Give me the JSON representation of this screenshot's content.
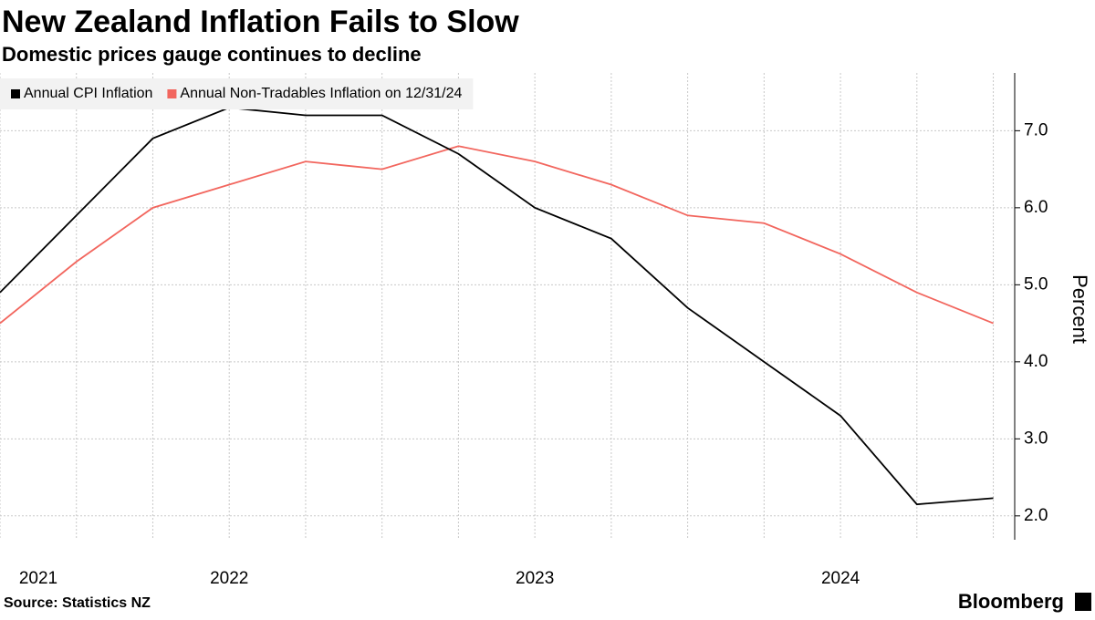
{
  "chart_data": {
    "type": "line",
    "title": "New Zealand Inflation Fails to Slow",
    "subtitle": "Domestic prices gauge continues to decline",
    "y_label": "Percent",
    "source": "Source: Statistics NZ",
    "brand": "Bloomberg",
    "x": [
      2021.25,
      2021.5,
      2021.75,
      2022,
      2022.25,
      2022.5,
      2022.75,
      2023,
      2023.25,
      2023.5,
      2023.75,
      2024,
      2024.25,
      2024.5
    ],
    "xlim": [
      2021.25,
      2024.57
    ],
    "xticks": [
      2021,
      2022,
      2023,
      2024
    ],
    "ylim": [
      1.69,
      7.75
    ],
    "yticks": [
      {
        "value": 2,
        "label": "2.0"
      },
      {
        "value": 3,
        "label": "3.0"
      },
      {
        "value": 4,
        "label": "4.0"
      },
      {
        "value": 5,
        "label": "5.0"
      },
      {
        "value": 6,
        "label": "6.0"
      },
      {
        "value": 7,
        "label": "7.0"
      }
    ],
    "grid": true,
    "legend": "top-left",
    "series": [
      {
        "name": "Annual CPI Inflation",
        "color": "#000000",
        "values": [
          4.9,
          5.9,
          6.9,
          7.3,
          7.2,
          7.2,
          6.7,
          6.0,
          5.6,
          4.7,
          4.0,
          3.3,
          2.15,
          2.23
        ]
      },
      {
        "name": "Annual Non-Tradables Inflation on 12/31/24",
        "color": "#f2665e",
        "values": [
          4.5,
          5.3,
          6.0,
          6.3,
          6.6,
          6.5,
          6.8,
          6.6,
          6.3,
          5.9,
          5.8,
          5.4,
          4.9,
          4.5
        ]
      }
    ]
  }
}
